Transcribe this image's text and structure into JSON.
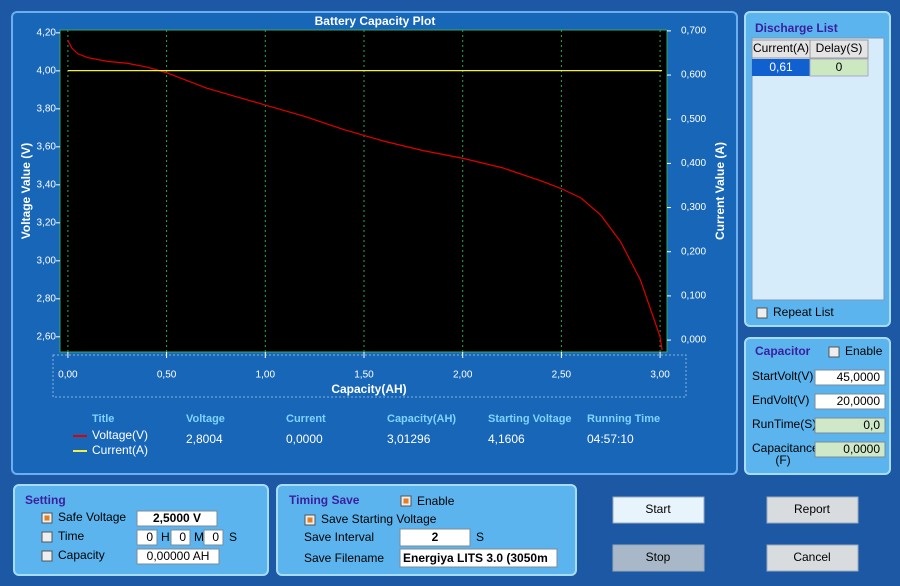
{
  "chart_data": {
    "type": "line",
    "title": "Battery Capacity Plot",
    "x_label": "Capacity(AH)",
    "y_label": "Voltage Value (V)",
    "y2_label": "Current Value (A)",
    "x": [
      0,
      0.02,
      0.05,
      0.1,
      0.2,
      0.3,
      0.4,
      0.5,
      0.6,
      0.7,
      0.8,
      1.0,
      1.2,
      1.4,
      1.6,
      1.8,
      2.0,
      2.2,
      2.4,
      2.5,
      2.6,
      2.7,
      2.8,
      2.9,
      2.95,
      3.0,
      3.01
    ],
    "series": [
      {
        "name": "Voltage(V)",
        "color": "#e00000",
        "values": [
          4.16,
          4.12,
          4.09,
          4.07,
          4.05,
          4.04,
          4.02,
          3.99,
          3.95,
          3.91,
          3.88,
          3.82,
          3.76,
          3.69,
          3.63,
          3.58,
          3.54,
          3.49,
          3.42,
          3.38,
          3.33,
          3.24,
          3.1,
          2.9,
          2.75,
          2.6,
          2.53
        ]
      },
      {
        "name": "Current(A)",
        "color": "#f0f040",
        "axis": "y2",
        "values": [
          0.61,
          0.61,
          0.61,
          0.61,
          0.61,
          0.61,
          0.61,
          0.61,
          0.61,
          0.61,
          0.61,
          0.61,
          0.61,
          0.61,
          0.61,
          0.61,
          0.61,
          0.61,
          0.61,
          0.61,
          0.61,
          0.61,
          0.61,
          0.61,
          0.61,
          0.61,
          0.61
        ]
      }
    ],
    "xlim": [
      -0.04,
      3.035
    ],
    "ylim": [
      2.52,
      4.215
    ],
    "y2lim": [
      -0.027,
      0.702
    ],
    "xticks": [
      {
        "value": 0,
        "label": "0,00"
      },
      {
        "value": 0.5,
        "label": "0,50"
      },
      {
        "value": 1,
        "label": "1,00"
      },
      {
        "value": 1.5,
        "label": "1,50"
      },
      {
        "value": 2,
        "label": "2,00"
      },
      {
        "value": 2.5,
        "label": "2,50"
      },
      {
        "value": 3,
        "label": "3,00"
      }
    ],
    "yticks": [
      {
        "value": 2.6,
        "label": "2,60"
      },
      {
        "value": 2.8,
        "label": "2,80"
      },
      {
        "value": 3.0,
        "label": "3,00"
      },
      {
        "value": 3.2,
        "label": "3,20"
      },
      {
        "value": 3.4,
        "label": "3,40"
      },
      {
        "value": 3.6,
        "label": "3,60"
      },
      {
        "value": 3.8,
        "label": "3,80"
      },
      {
        "value": 4.0,
        "label": "4,00"
      },
      {
        "value": 4.2,
        "label": "4,20"
      }
    ],
    "y2ticks": [
      {
        "value": 0,
        "label": "0,000"
      },
      {
        "value": 0.1,
        "label": "0,100"
      },
      {
        "value": 0.2,
        "label": "0,200"
      },
      {
        "value": 0.3,
        "label": "0,300"
      },
      {
        "value": 0.4,
        "label": "0,400"
      },
      {
        "value": 0.5,
        "label": "0,500"
      },
      {
        "value": 0.6,
        "label": "0,600"
      },
      {
        "value": 0.7,
        "label": "0,700"
      }
    ],
    "grid": "x",
    "grid_color": "#2aa84a"
  },
  "stats": {
    "title_header": "Title",
    "headers": [
      "Voltage",
      "Current",
      "Capacity(AH)",
      "Starting Voltage",
      "Running Time"
    ],
    "values": [
      "2,8004",
      "0,0000",
      "3,01296",
      "4,1606",
      "04:57:10"
    ]
  },
  "discharge_list": {
    "title": "Discharge List",
    "columns": [
      "Current(A)",
      "Delay(S)"
    ],
    "rows": [
      [
        "0,61",
        "0"
      ]
    ],
    "repeat_label": "Repeat List"
  },
  "capacitor": {
    "title": "Capacitor",
    "enable": "Enable",
    "fields": [
      {
        "label": "StartVolt(V)",
        "value": "45,0000"
      },
      {
        "label": "EndVolt(V)",
        "value": "20,0000"
      },
      {
        "label": "RunTime(S)",
        "value": "0,0"
      },
      {
        "label": "Capacitance",
        "label_2": "(F)",
        "value": "0,0000"
      }
    ]
  },
  "setting": {
    "title": "Setting",
    "safe_voltage": "Safe Voltage",
    "safe_voltage_value": "2,5000 V",
    "time": "Time",
    "time_fields": [
      "0",
      "H",
      "0",
      "M",
      "0",
      "S"
    ],
    "capacity": "Capacity",
    "capacity_value": "0,00000 AH"
  },
  "timing_save": {
    "title": "Timing Save",
    "enable": "Enable",
    "save_starting": "Save Starting Voltage",
    "interval_label": "Save Interval",
    "interval_value": "2",
    "interval_unit": "S",
    "filename_label": "Save Filename",
    "filename_value": "Energiya LITS 3.0 (3050m"
  },
  "buttons": [
    "Start",
    "Stop",
    "Report",
    "Cancel"
  ]
}
